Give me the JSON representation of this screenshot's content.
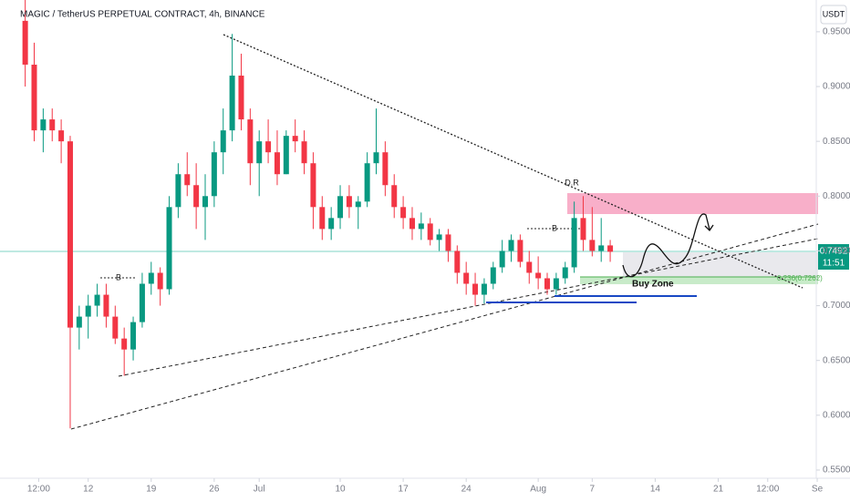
{
  "chart_data": {
    "type": "candlestick",
    "title": "MAGIC / TetherUS PERPETUAL CONTRACT, 4h, BINANCE",
    "currency": "USDT",
    "x": [
      5,
      6,
      7,
      8,
      9,
      10,
      11,
      12,
      13,
      14,
      15,
      16,
      17,
      18,
      19,
      20,
      21,
      22,
      23,
      24,
      25,
      26,
      27,
      28,
      29,
      30,
      31,
      32,
      33,
      34,
      35,
      36,
      37,
      38,
      39,
      40,
      41,
      42,
      43,
      44,
      45,
      46,
      47,
      48,
      49,
      50,
      51,
      52,
      53,
      54,
      55,
      56,
      57,
      58,
      59,
      60,
      61,
      62,
      63,
      64,
      65,
      66,
      67,
      68,
      69,
      70
    ],
    "open": [
      0.96,
      0.92,
      0.86,
      0.87,
      0.86,
      0.85,
      0.68,
      0.69,
      0.7,
      0.71,
      0.69,
      0.67,
      0.66,
      0.685,
      0.72,
      0.73,
      0.715,
      0.79,
      0.82,
      0.81,
      0.79,
      0.8,
      0.84,
      0.86,
      0.91,
      0.87,
      0.83,
      0.85,
      0.84,
      0.82,
      0.855,
      0.85,
      0.83,
      0.79,
      0.77,
      0.78,
      0.8,
      0.79,
      0.795,
      0.83,
      0.84,
      0.81,
      0.79,
      0.78,
      0.77,
      0.775,
      0.76,
      0.765,
      0.75,
      0.73,
      0.72,
      0.71,
      0.72,
      0.735,
      0.75,
      0.76,
      0.74,
      0.73,
      0.725,
      0.715,
      0.725,
      0.735,
      0.78,
      0.76,
      0.75,
      0.755
    ],
    "high": [
      0.979,
      0.94,
      0.88,
      0.88,
      0.87,
      0.855,
      0.7,
      0.71,
      0.72,
      0.72,
      0.7,
      0.68,
      0.69,
      0.73,
      0.74,
      0.735,
      0.8,
      0.83,
      0.84,
      0.83,
      0.82,
      0.85,
      0.88,
      0.948,
      0.93,
      0.88,
      0.86,
      0.87,
      0.86,
      0.86,
      0.87,
      0.86,
      0.84,
      0.8,
      0.79,
      0.81,
      0.81,
      0.8,
      0.84,
      0.88,
      0.85,
      0.82,
      0.8,
      0.79,
      0.785,
      0.78,
      0.77,
      0.77,
      0.755,
      0.74,
      0.73,
      0.725,
      0.74,
      0.76,
      0.765,
      0.765,
      0.75,
      0.745,
      0.73,
      0.73,
      0.74,
      0.795,
      0.8,
      0.79,
      0.78,
      0.76
    ],
    "low": [
      0.9,
      0.85,
      0.84,
      0.85,
      0.83,
      0.588,
      0.66,
      0.67,
      0.69,
      0.68,
      0.665,
      0.636,
      0.65,
      0.68,
      0.71,
      0.7,
      0.71,
      0.78,
      0.8,
      0.77,
      0.76,
      0.79,
      0.82,
      0.85,
      0.86,
      0.81,
      0.8,
      0.83,
      0.81,
      0.82,
      0.84,
      0.82,
      0.77,
      0.76,
      0.76,
      0.77,
      0.78,
      0.77,
      0.79,
      0.82,
      0.8,
      0.78,
      0.77,
      0.76,
      0.76,
      0.755,
      0.75,
      0.74,
      0.72,
      0.71,
      0.7,
      0.702,
      0.715,
      0.73,
      0.74,
      0.735,
      0.72,
      0.715,
      0.71,
      0.71,
      0.72,
      0.73,
      0.75,
      0.745,
      0.74,
      0.74
    ],
    "close": [
      0.92,
      0.86,
      0.87,
      0.86,
      0.85,
      0.68,
      0.69,
      0.7,
      0.71,
      0.69,
      0.67,
      0.66,
      0.685,
      0.72,
      0.73,
      0.715,
      0.79,
      0.82,
      0.81,
      0.79,
      0.8,
      0.84,
      0.86,
      0.91,
      0.87,
      0.83,
      0.85,
      0.84,
      0.82,
      0.855,
      0.85,
      0.83,
      0.79,
      0.77,
      0.78,
      0.8,
      0.79,
      0.795,
      0.83,
      0.84,
      0.81,
      0.79,
      0.78,
      0.77,
      0.775,
      0.76,
      0.765,
      0.75,
      0.73,
      0.72,
      0.71,
      0.72,
      0.735,
      0.75,
      0.76,
      0.74,
      0.73,
      0.725,
      0.715,
      0.725,
      0.735,
      0.78,
      0.76,
      0.75,
      0.755,
      0.7492
    ],
    "up_color": "#089981",
    "down_color": "#f23645",
    "xlim": [
      2.2,
      93.4
    ],
    "xticks": [
      {
        "value": 6.5,
        "label": "12:00"
      },
      12,
      19,
      26,
      {
        "value": 31,
        "label": "Jul"
      },
      {
        "value": 40,
        "label": "10"
      },
      {
        "value": 47,
        "label": "17"
      },
      {
        "value": 54,
        "label": "24"
      },
      {
        "value": 62,
        "label": "Aug"
      },
      {
        "value": 68,
        "label": "7"
      },
      {
        "value": 75,
        "label": "14"
      },
      {
        "value": 82,
        "label": "21"
      },
      {
        "value": 87.5,
        "label": "12:00"
      },
      {
        "value": 93,
        "label": "Se"
      }
    ],
    "ylim": [
      0.5425,
      0.979
    ],
    "yticks": [
      {
        "value": 0.55,
        "label": "0.5500"
      },
      {
        "value": 0.6,
        "label": "0.6000"
      },
      {
        "value": 0.65,
        "label": "0.6500"
      },
      {
        "value": 0.7,
        "label": "0.7000"
      },
      {
        "value": 0.75,
        "label": "0.7500"
      },
      {
        "value": 0.8,
        "label": "0.8000"
      },
      {
        "value": 0.85,
        "label": "0.8500"
      },
      {
        "value": 0.9,
        "label": "0.9000"
      },
      {
        "value": 0.95,
        "label": "0.9500"
      }
    ],
    "annotations": {
      "last_price": "0.7492",
      "countdown": "11:51",
      "buy_zone": "Buy Zone",
      "fib": "0.236(0.7262)",
      "break_1": "B",
      "break_2": "B",
      "dr": "D.R"
    }
  }
}
